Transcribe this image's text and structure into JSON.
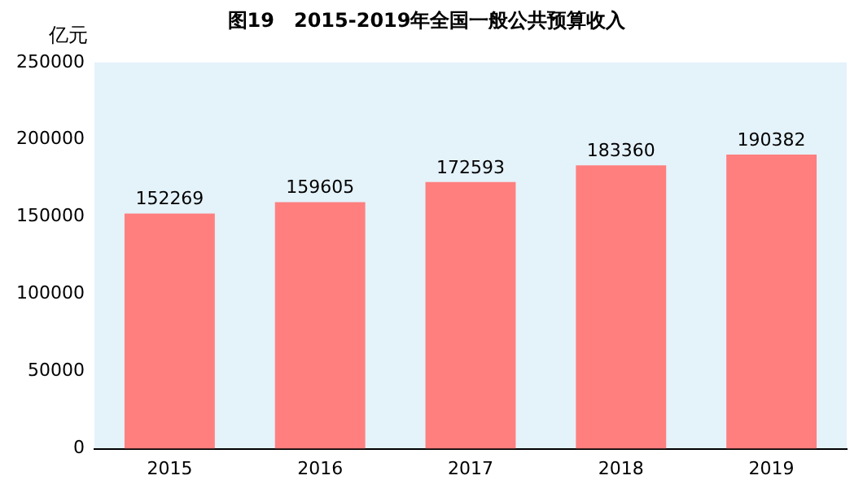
{
  "chart_data": {
    "type": "bar",
    "title": "图19　2015-2019年全国一般公共预算收入",
    "ylabel": "亿元",
    "categories": [
      "2015",
      "2016",
      "2017",
      "2018",
      "2019"
    ],
    "values": [
      152269,
      159605,
      172593,
      183360,
      190382
    ],
    "color": "#ff7f7f",
    "ylim": [
      0,
      250000
    ],
    "yticks": [
      0,
      50000,
      100000,
      150000,
      200000,
      250000
    ],
    "grid": false,
    "legend": false,
    "data_labels": true
  }
}
